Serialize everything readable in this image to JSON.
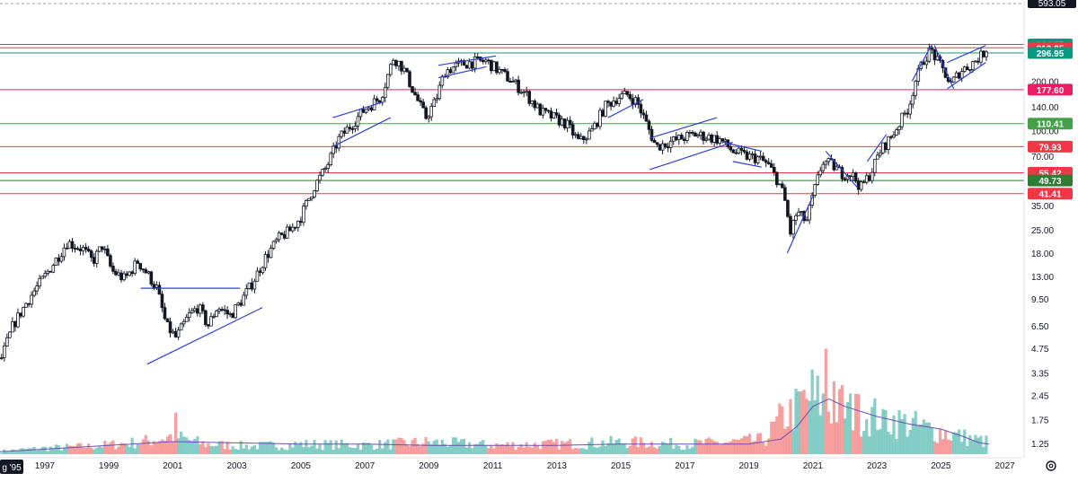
{
  "chart_data": {
    "type": "candlestick",
    "y_scale": "log",
    "ylim": [
      1.05,
      593.05
    ],
    "xlim": [
      1995.6,
      2027.6
    ],
    "grid": false,
    "colors": {
      "up": "#26a69a",
      "down": "#ef5350",
      "candle": "#131722",
      "trendline": "#2a3fd8",
      "volume_ma": "#6a4fb5"
    },
    "x_axis": {
      "first_label": "g '95",
      "ticks": [
        {
          "label": "1997",
          "x": 1997
        },
        {
          "label": "1999",
          "x": 1999
        },
        {
          "label": "2001",
          "x": 2001
        },
        {
          "label": "2003",
          "x": 2003
        },
        {
          "label": "2005",
          "x": 2005
        },
        {
          "label": "2007",
          "x": 2007
        },
        {
          "label": "2009",
          "x": 2009
        },
        {
          "label": "2011",
          "x": 2011
        },
        {
          "label": "2013",
          "x": 2013
        },
        {
          "label": "2015",
          "x": 2015
        },
        {
          "label": "2017",
          "x": 2017
        },
        {
          "label": "2019",
          "x": 2019
        },
        {
          "label": "2021",
          "x": 2021
        },
        {
          "label": "2023",
          "x": 2023
        },
        {
          "label": "2025",
          "x": 2025
        },
        {
          "label": "2027",
          "x": 2027
        }
      ]
    },
    "y_axis": {
      "top_label": "593.05",
      "ticks": [
        {
          "label": "200.00",
          "v": 200
        },
        {
          "label": "140.00",
          "v": 140
        },
        {
          "label": "100.00",
          "v": 100
        },
        {
          "label": "70.00",
          "v": 70
        },
        {
          "label": "35.00",
          "v": 35
        },
        {
          "label": "25.00",
          "v": 25
        },
        {
          "label": "18.00",
          "v": 18
        },
        {
          "label": "13.00",
          "v": 13
        },
        {
          "label": "9.50",
          "v": 9.5
        },
        {
          "label": "6.50",
          "v": 6.5
        },
        {
          "label": "4.75",
          "v": 4.75
        },
        {
          "label": "3.35",
          "v": 3.35
        },
        {
          "label": "2.45",
          "v": 2.45
        },
        {
          "label": "1.75",
          "v": 1.75
        },
        {
          "label": "1.25",
          "v": 1.25
        }
      ]
    },
    "price_levels": [
      {
        "label": "334.95",
        "v": 334.95,
        "color": "#089981"
      },
      {
        "label": "319.25",
        "v": 319.25,
        "color": "#f23645"
      },
      {
        "label": "296.95",
        "v": 296.95,
        "color": "#089981"
      },
      {
        "label": "177.60",
        "v": 177.6,
        "color": "#e91e63"
      },
      {
        "label": "110.41",
        "v": 110.41,
        "color": "#43a047"
      },
      {
        "label": "79.93",
        "v": 79.93,
        "color": "#f23645"
      },
      {
        "label": "55.42",
        "v": 55.42,
        "color": "#f23645"
      },
      {
        "label": "49.73",
        "v": 49.73,
        "color": "#2e7d32"
      },
      {
        "label": "41.41",
        "v": 41.41,
        "color": "#f23645"
      }
    ],
    "price_path": [
      [
        1995.6,
        3.9
      ],
      [
        1996.0,
        6.5
      ],
      [
        1996.5,
        9.5
      ],
      [
        1997.0,
        13
      ],
      [
        1997.4,
        17
      ],
      [
        1997.7,
        21
      ],
      [
        1998.2,
        19
      ],
      [
        1998.5,
        16
      ],
      [
        1998.8,
        20
      ],
      [
        1999.1,
        14
      ],
      [
        1999.5,
        12.5
      ],
      [
        1999.9,
        16
      ],
      [
        2000.2,
        13.5
      ],
      [
        2000.5,
        11
      ],
      [
        2000.8,
        6.5
      ],
      [
        2001.1,
        5.5
      ],
      [
        2001.5,
        7.5
      ],
      [
        2001.8,
        8.5
      ],
      [
        2002.1,
        6.5
      ],
      [
        2002.4,
        8.5
      ],
      [
        2002.8,
        7.5
      ],
      [
        2003.1,
        9
      ],
      [
        2003.5,
        12
      ],
      [
        2003.9,
        17
      ],
      [
        2004.3,
        22
      ],
      [
        2004.7,
        25
      ],
      [
        2005.0,
        30
      ],
      [
        2005.4,
        45
      ],
      [
        2005.8,
        60
      ],
      [
        2006.2,
        90
      ],
      [
        2006.6,
        110
      ],
      [
        2007.0,
        135
      ],
      [
        2007.5,
        160
      ],
      [
        2007.9,
        280
      ],
      [
        2008.2,
        240
      ],
      [
        2008.6,
        160
      ],
      [
        2008.9,
        120
      ],
      [
        2009.2,
        150
      ],
      [
        2009.5,
        230
      ],
      [
        2009.9,
        250
      ],
      [
        2010.3,
        260
      ],
      [
        2010.8,
        265
      ],
      [
        2011.2,
        230
      ],
      [
        2011.6,
        200
      ],
      [
        2012.0,
        170
      ],
      [
        2012.5,
        130
      ],
      [
        2012.9,
        120
      ],
      [
        2013.3,
        110
      ],
      [
        2013.7,
        85
      ],
      [
        2014.1,
        100
      ],
      [
        2014.5,
        140
      ],
      [
        2014.9,
        160
      ],
      [
        2015.2,
        165
      ],
      [
        2015.5,
        150
      ],
      [
        2015.8,
        110
      ],
      [
        2016.1,
        80
      ],
      [
        2016.5,
        85
      ],
      [
        2016.9,
        90
      ],
      [
        2017.3,
        95
      ],
      [
        2017.7,
        92
      ],
      [
        2018.1,
        88
      ],
      [
        2018.5,
        75
      ],
      [
        2018.9,
        70
      ],
      [
        2019.3,
        68
      ],
      [
        2019.6,
        62
      ],
      [
        2019.9,
        50
      ],
      [
        2020.1,
        40
      ],
      [
        2020.3,
        24
      ],
      [
        2020.5,
        32
      ],
      [
        2020.8,
        28
      ],
      [
        2021.0,
        40
      ],
      [
        2021.3,
        65
      ],
      [
        2021.6,
        62
      ],
      [
        2021.9,
        55
      ],
      [
        2022.2,
        55
      ],
      [
        2022.5,
        45
      ],
      [
        2022.8,
        55
      ],
      [
        2023.1,
        75
      ],
      [
        2023.5,
        95
      ],
      [
        2023.8,
        120
      ],
      [
        2024.0,
        140
      ],
      [
        2024.2,
        200
      ],
      [
        2024.5,
        280
      ],
      [
        2024.7,
        310
      ],
      [
        2024.9,
        260
      ],
      [
        2025.1,
        230
      ],
      [
        2025.3,
        190
      ],
      [
        2025.6,
        230
      ],
      [
        2025.9,
        250
      ],
      [
        2026.1,
        270
      ],
      [
        2026.3,
        290
      ],
      [
        2026.5,
        335
      ]
    ],
    "volume_path": [
      [
        1995.6,
        0.03
      ],
      [
        1997.0,
        0.06
      ],
      [
        1998.5,
        0.08
      ],
      [
        2000.0,
        0.12
      ],
      [
        2001.0,
        0.18
      ],
      [
        2002.0,
        0.1
      ],
      [
        2003.5,
        0.08
      ],
      [
        2005.0,
        0.1
      ],
      [
        2007.0,
        0.09
      ],
      [
        2009.0,
        0.12
      ],
      [
        2011.0,
        0.09
      ],
      [
        2013.0,
        0.1
      ],
      [
        2015.0,
        0.12
      ],
      [
        2017.0,
        0.1
      ],
      [
        2018.5,
        0.12
      ],
      [
        2019.5,
        0.14
      ],
      [
        2020.0,
        0.35
      ],
      [
        2020.5,
        0.45
      ],
      [
        2021.0,
        0.6
      ],
      [
        2021.3,
        0.5
      ],
      [
        2021.8,
        0.45
      ],
      [
        2022.5,
        0.4
      ],
      [
        2023.0,
        0.38
      ],
      [
        2024.0,
        0.3
      ],
      [
        2025.0,
        0.22
      ],
      [
        2026.0,
        0.15
      ],
      [
        2026.5,
        0.12
      ]
    ],
    "volume_ma_path": [
      [
        1995.6,
        0.02
      ],
      [
        1999.0,
        0.07
      ],
      [
        2001.0,
        0.1
      ],
      [
        2003.0,
        0.09
      ],
      [
        2005.0,
        0.08
      ],
      [
        2007.0,
        0.08
      ],
      [
        2009.0,
        0.07
      ],
      [
        2011.0,
        0.07
      ],
      [
        2013.0,
        0.07
      ],
      [
        2015.0,
        0.08
      ],
      [
        2017.0,
        0.08
      ],
      [
        2019.0,
        0.08
      ],
      [
        2020.0,
        0.12
      ],
      [
        2020.5,
        0.22
      ],
      [
        2021.0,
        0.38
      ],
      [
        2021.5,
        0.44
      ],
      [
        2022.0,
        0.38
      ],
      [
        2023.0,
        0.3
      ],
      [
        2024.0,
        0.24
      ],
      [
        2025.0,
        0.2
      ],
      [
        2025.7,
        0.14
      ],
      [
        2026.2,
        0.09
      ],
      [
        2026.5,
        0.08
      ]
    ],
    "volume_spikes": [
      [
        2001.1,
        0.33
      ],
      [
        2020.6,
        0.5
      ],
      [
        2020.8,
        0.44
      ],
      [
        2021.1,
        0.43
      ],
      [
        2021.4,
        0.84
      ],
      [
        2021.7,
        0.58
      ],
      [
        2021.9,
        0.55
      ],
      [
        2022.3,
        0.48
      ],
      [
        2023.2,
        0.36
      ],
      [
        2023.9,
        0.32
      ]
    ],
    "trendlines": [
      {
        "x1": 2000.2,
        "y1": 3.8,
        "x2": 2003.8,
        "y2": 8.4
      },
      {
        "x1": 2000.0,
        "y1": 11,
        "x2": 2003.1,
        "y2": 11
      },
      {
        "x1": 2006.0,
        "y1": 80,
        "x2": 2007.8,
        "y2": 120
      },
      {
        "x1": 2006.0,
        "y1": 120,
        "x2": 2007.6,
        "y2": 150
      },
      {
        "x1": 2009.3,
        "y1": 210,
        "x2": 2010.8,
        "y2": 245
      },
      {
        "x1": 2009.3,
        "y1": 250,
        "x2": 2011.1,
        "y2": 285
      },
      {
        "x1": 2014.6,
        "y1": 120,
        "x2": 2015.7,
        "y2": 155
      },
      {
        "x1": 2015.9,
        "y1": 58,
        "x2": 2018.5,
        "y2": 85
      },
      {
        "x1": 2015.9,
        "y1": 90,
        "x2": 2018.0,
        "y2": 120
      },
      {
        "x1": 2018.2,
        "y1": 85,
        "x2": 2019.4,
        "y2": 75
      },
      {
        "x1": 2018.5,
        "y1": 65,
        "x2": 2019.4,
        "y2": 60
      },
      {
        "x1": 2020.2,
        "y1": 18,
        "x2": 2021.0,
        "y2": 40
      },
      {
        "x1": 2021.4,
        "y1": 75,
        "x2": 2022.4,
        "y2": 45
      },
      {
        "x1": 2022.7,
        "y1": 65,
        "x2": 2023.3,
        "y2": 95
      },
      {
        "x1": 2024.1,
        "y1": 200,
        "x2": 2024.7,
        "y2": 330
      },
      {
        "x1": 2024.8,
        "y1": 330,
        "x2": 2025.4,
        "y2": 180
      },
      {
        "x1": 2025.2,
        "y1": 180,
        "x2": 2026.4,
        "y2": 260
      },
      {
        "x1": 2025.2,
        "y1": 260,
        "x2": 2026.4,
        "y2": 330
      }
    ]
  }
}
